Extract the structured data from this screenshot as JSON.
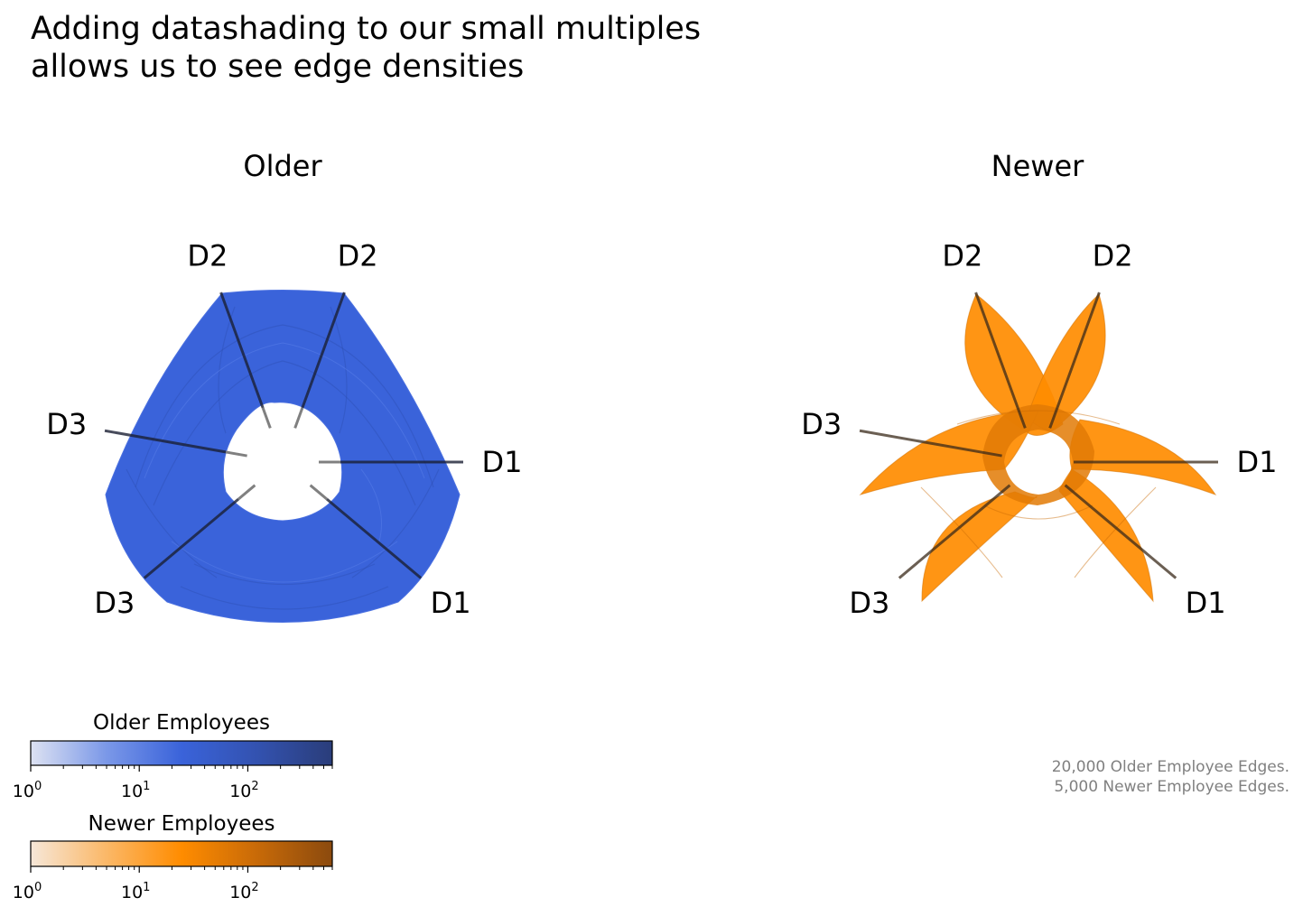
{
  "title": [
    "Adding datashading to our small multiples",
    "allows us to see edge densities"
  ],
  "annotation": [
    "20,000 Older Employee Edges.",
    "5,000 Newer Employee Edges."
  ],
  "colors": {
    "older_base": "#3a63da",
    "older_dark": "#2a3d7a",
    "newer_base": "#ff8c00",
    "newer_dark": "#8b4a0e",
    "axis_line": "#000000",
    "inner_tick": "#808080"
  },
  "chart_data": [
    {
      "type": "hive",
      "name": "Older",
      "title": "Older",
      "axes": [
        {
          "label": "D1",
          "angle_deg": 0
        },
        {
          "label": "D1",
          "angle_deg": -40
        },
        {
          "label": "D2",
          "angle_deg": 110
        },
        {
          "label": "D2",
          "angle_deg": 70
        },
        {
          "label": "D3",
          "angle_deg": 170
        },
        {
          "label": "D3",
          "angle_deg": 220
        }
      ],
      "edge_count": 20000,
      "color": "#3a63da"
    },
    {
      "type": "hive",
      "name": "Newer",
      "title": "Newer",
      "axes": [
        {
          "label": "D1",
          "angle_deg": 0
        },
        {
          "label": "D1",
          "angle_deg": -40
        },
        {
          "label": "D2",
          "angle_deg": 110
        },
        {
          "label": "D2",
          "angle_deg": 70
        },
        {
          "label": "D3",
          "angle_deg": 170
        },
        {
          "label": "D3",
          "angle_deg": 220
        }
      ],
      "edge_count": 5000,
      "color": "#ff8c00"
    }
  ],
  "colorbars": [
    {
      "title": "Older Employees",
      "scale": "log",
      "range": [
        1,
        600
      ],
      "ticks": [
        {
          "base": "10",
          "exp": "0"
        },
        {
          "base": "10",
          "exp": "1"
        },
        {
          "base": "10",
          "exp": "2"
        }
      ],
      "stops": [
        "#dde2f2",
        "#7b98e8",
        "#3a63da",
        "#3352b0",
        "#2a3d7a"
      ]
    },
    {
      "title": "Newer Employees",
      "scale": "log",
      "range": [
        1,
        600
      ],
      "ticks": [
        {
          "base": "10",
          "exp": "0"
        },
        {
          "base": "10",
          "exp": "1"
        },
        {
          "base": "10",
          "exp": "2"
        }
      ],
      "stops": [
        "#f6e7d8",
        "#fbb868",
        "#ff8c00",
        "#c86a08",
        "#8b4a0e"
      ]
    }
  ]
}
